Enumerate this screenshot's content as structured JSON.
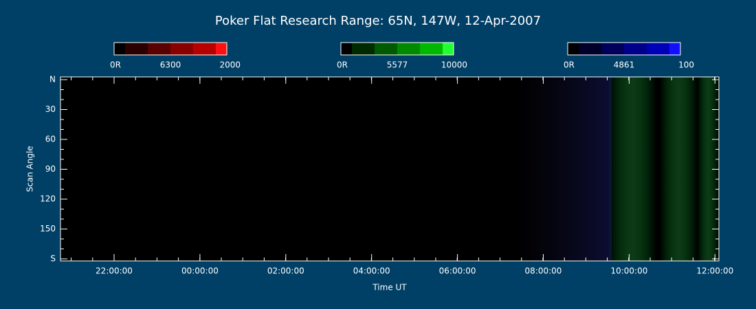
{
  "title": "Poker Flat Research Range: 65N, 147W, 12-Apr-2007",
  "colorbars": [
    {
      "min_label": "0R",
      "line_label": "6300",
      "max_label": "2000"
    },
    {
      "min_label": "0R",
      "line_label": "5577",
      "max_label": "10000"
    },
    {
      "min_label": "0R",
      "line_label": "4861",
      "max_label": "100"
    }
  ],
  "plot": {
    "x_label": "Time UT",
    "y_label": "Scan Angle",
    "x_ticks": [
      "22:00:00",
      "00:00:00",
      "02:00:00",
      "04:00:00",
      "06:00:00",
      "08:00:00",
      "10:00:00",
      "12:00:00"
    ],
    "y_ticks": [
      "N",
      "30",
      "60",
      "90",
      "120",
      "150",
      "S"
    ]
  }
}
